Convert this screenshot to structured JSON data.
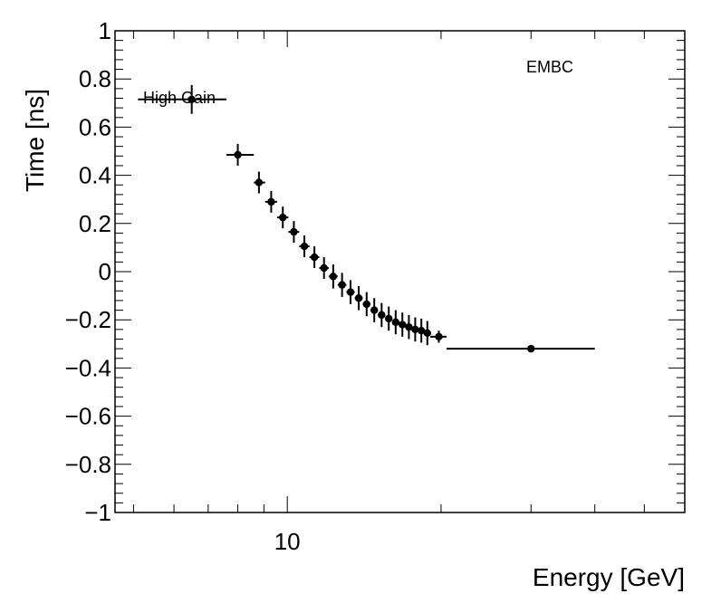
{
  "chart_data": {
    "type": "scatter",
    "title": "",
    "xlabel": "Energy [GeV]",
    "ylabel": "Time [ns]",
    "x_scale": "log",
    "xlim": [
      4.6,
      60
    ],
    "ylim": [
      -1,
      1
    ],
    "x_tick_labels": [
      {
        "value": 10,
        "label": "10"
      }
    ],
    "y_ticks": [
      -1,
      -0.8,
      -0.6,
      -0.4,
      -0.2,
      0,
      0.2,
      0.4,
      0.6,
      0.8,
      1
    ],
    "y_tick_labels": [
      "−1",
      "−0.8",
      "−0.6",
      "−0.4",
      "−0.2",
      "0",
      "0.2",
      "0.4",
      "0.6",
      "0.8",
      "1"
    ],
    "grid": false,
    "annotations": [
      "EMBC"
    ],
    "legend": {
      "entries": [
        "High Gain"
      ],
      "placement": "top-left"
    },
    "series": [
      {
        "name": "High Gain",
        "color": "#000000",
        "points": [
          {
            "x": 6.5,
            "xlo": 5.1,
            "xhi": 7.6,
            "y": 0.715,
            "yerr": 0.06
          },
          {
            "x": 8.0,
            "xlo": 7.6,
            "xhi": 8.6,
            "y": 0.485,
            "yerr": 0.045
          },
          {
            "x": 8.8,
            "xlo": 8.6,
            "xhi": 9.05,
            "y": 0.37,
            "yerr": 0.045
          },
          {
            "x": 9.3,
            "xlo": 9.05,
            "xhi": 9.55,
            "y": 0.29,
            "yerr": 0.045
          },
          {
            "x": 9.8,
            "xlo": 9.55,
            "xhi": 10.05,
            "y": 0.225,
            "yerr": 0.045
          },
          {
            "x": 10.3,
            "xlo": 10.05,
            "xhi": 10.55,
            "y": 0.165,
            "yerr": 0.045
          },
          {
            "x": 10.8,
            "xlo": 10.55,
            "xhi": 11.05,
            "y": 0.105,
            "yerr": 0.045
          },
          {
            "x": 11.3,
            "xlo": 11.05,
            "xhi": 11.55,
            "y": 0.06,
            "yerr": 0.045
          },
          {
            "x": 11.8,
            "xlo": 11.55,
            "xhi": 12.05,
            "y": 0.015,
            "yerr": 0.045
          },
          {
            "x": 12.3,
            "xlo": 12.05,
            "xhi": 12.55,
            "y": -0.02,
            "yerr": 0.05
          },
          {
            "x": 12.8,
            "xlo": 12.55,
            "xhi": 13.05,
            "y": -0.055,
            "yerr": 0.05
          },
          {
            "x": 13.3,
            "xlo": 13.05,
            "xhi": 13.55,
            "y": -0.085,
            "yerr": 0.05
          },
          {
            "x": 13.8,
            "xlo": 13.55,
            "xhi": 14.05,
            "y": -0.11,
            "yerr": 0.05
          },
          {
            "x": 14.3,
            "xlo": 14.05,
            "xhi": 14.55,
            "y": -0.135,
            "yerr": 0.05
          },
          {
            "x": 14.8,
            "xlo": 14.55,
            "xhi": 15.05,
            "y": -0.16,
            "yerr": 0.05
          },
          {
            "x": 15.3,
            "xlo": 15.05,
            "xhi": 15.55,
            "y": -0.18,
            "yerr": 0.05
          },
          {
            "x": 15.8,
            "xlo": 15.55,
            "xhi": 16.05,
            "y": -0.195,
            "yerr": 0.05
          },
          {
            "x": 16.3,
            "xlo": 16.05,
            "xhi": 16.55,
            "y": -0.21,
            "yerr": 0.05
          },
          {
            "x": 16.8,
            "xlo": 16.55,
            "xhi": 17.05,
            "y": -0.22,
            "yerr": 0.05
          },
          {
            "x": 17.3,
            "xlo": 17.05,
            "xhi": 17.55,
            "y": -0.23,
            "yerr": 0.05
          },
          {
            "x": 17.8,
            "xlo": 17.55,
            "xhi": 18.05,
            "y": -0.24,
            "yerr": 0.05
          },
          {
            "x": 18.3,
            "xlo": 18.05,
            "xhi": 18.55,
            "y": -0.245,
            "yerr": 0.05
          },
          {
            "x": 18.8,
            "xlo": 18.55,
            "xhi": 19.05,
            "y": -0.255,
            "yerr": 0.05
          },
          {
            "x": 19.8,
            "xlo": 19.05,
            "xhi": 20.5,
            "y": -0.27,
            "yerr": 0.025
          },
          {
            "x": 30,
            "xlo": 20.5,
            "xhi": 40,
            "y": -0.32,
            "yerr": 0.012
          }
        ]
      }
    ]
  }
}
